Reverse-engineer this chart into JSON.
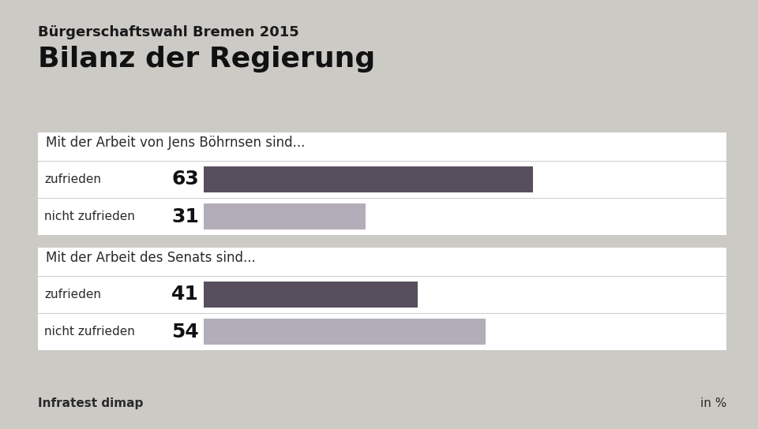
{
  "title": "Bilanz der Regierung",
  "subtitle": "Bürgerschaftswahl Bremen 2015",
  "source": "Infratest dimap",
  "unit": "in %",
  "background_color": "#cccac5",
  "panel_bg": "#ffffff",
  "groups": [
    {
      "header": "Mit der Arbeit von Jens Böhrnsen sind...",
      "bars": [
        {
          "label": "zufrieden",
          "value": 63,
          "color": "#584f5e"
        },
        {
          "label": "nicht zufrieden",
          "value": 31,
          "color": "#b3adb9"
        }
      ]
    },
    {
      "header": "Mit der Arbeit des Senats sind...",
      "bars": [
        {
          "label": "zufrieden",
          "value": 41,
          "color": "#584f5e"
        },
        {
          "label": "nicht zufrieden",
          "value": 54,
          "color": "#b3adb9"
        }
      ]
    }
  ],
  "title_fontsize": 26,
  "subtitle_fontsize": 13,
  "header_fontsize": 12,
  "label_fontsize": 11,
  "value_fontsize": 18,
  "source_fontsize": 11
}
